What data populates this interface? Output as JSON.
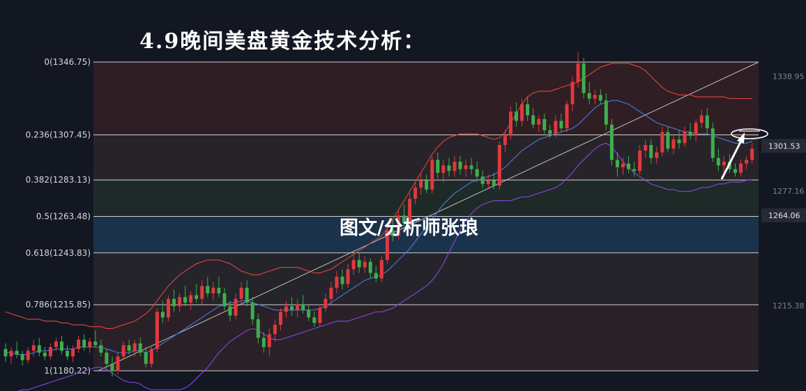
{
  "title": "4.9晚间美盘黄金技术分析：",
  "watermark": "图文/分析师张琅",
  "colors": {
    "background": "#131722",
    "up": "#e0393e",
    "down": "#3fae4d",
    "ma": "#4d7bdc",
    "upper_band": "#e2453c",
    "lower_band": "#8a45e0",
    "fib_line": "#d0d0d0",
    "trend_line": "#bfbfbf"
  },
  "chart_data": {
    "type": "candlestick",
    "price_range": [
      1172.3,
      1352.0
    ],
    "fib_levels": [
      {
        "label": "0(1346.75)",
        "price": 1346.75
      },
      {
        "label": "0.236(1307.45)",
        "price": 1307.45
      },
      {
        "label": "0.382(1283.13)",
        "price": 1283.13
      },
      {
        "label": "0.5(1263.48)",
        "price": 1263.48
      },
      {
        "label": "0.618(1243.83)",
        "price": 1243.83
      },
      {
        "label": "0.786(1215.85)",
        "price": 1215.85
      },
      {
        "label": "1(1180.22)",
        "price": 1180.22
      }
    ],
    "price_axis": [
      {
        "label": "1338.95",
        "price": 1338.95,
        "highlight": false
      },
      {
        "label": "1301.53",
        "price": 1301.53,
        "highlight": true
      },
      {
        "label": "1277.16",
        "price": 1277.16,
        "highlight": false
      },
      {
        "label": "1264.06",
        "price": 1264.06,
        "highlight": true
      },
      {
        "label": "1215.38",
        "price": 1215.38,
        "highlight": false
      }
    ],
    "zones": [
      {
        "from": 1346.75,
        "to": 1307.45,
        "color": "#3a2226",
        "opacity": 0.75
      },
      {
        "from": 1307.45,
        "to": 1283.13,
        "color": "#2f2a2c",
        "opacity": 0.75
      },
      {
        "from": 1283.13,
        "to": 1263.48,
        "color": "#22302a",
        "opacity": 0.8
      },
      {
        "from": 1263.48,
        "to": 1243.83,
        "color": "#1d3550",
        "opacity": 0.9
      },
      {
        "from": 1243.83,
        "to": 1215.85,
        "color": "#2b2a2e",
        "opacity": 0.75
      },
      {
        "from": 1215.85,
        "to": 1180.22,
        "color": "#32252a",
        "opacity": 0.75
      }
    ],
    "candles": [
      [
        1192,
        1195,
        1185,
        1188
      ],
      [
        1188,
        1193,
        1184,
        1191
      ],
      [
        1191,
        1196,
        1187,
        1189
      ],
      [
        1189,
        1191,
        1183,
        1186
      ],
      [
        1186,
        1193,
        1184,
        1191
      ],
      [
        1191,
        1197,
        1188,
        1194
      ],
      [
        1194,
        1198,
        1188,
        1190
      ],
      [
        1190,
        1193,
        1186,
        1188
      ],
      [
        1188,
        1195,
        1186,
        1193
      ],
      [
        1193,
        1198,
        1191,
        1196
      ],
      [
        1196,
        1199,
        1189,
        1191
      ],
      [
        1191,
        1194,
        1186,
        1188
      ],
      [
        1188,
        1194,
        1185,
        1192
      ],
      [
        1192,
        1199,
        1190,
        1197
      ],
      [
        1197,
        1200,
        1191,
        1193
      ],
      [
        1193,
        1198,
        1190,
        1196
      ],
      [
        1196,
        1202,
        1193,
        1194
      ],
      [
        1194,
        1197,
        1188,
        1190
      ],
      [
        1190,
        1192,
        1182,
        1184
      ],
      [
        1184,
        1188,
        1177,
        1180
      ],
      [
        1180,
        1190,
        1178,
        1188
      ],
      [
        1188,
        1196,
        1186,
        1194
      ],
      [
        1194,
        1197,
        1189,
        1191
      ],
      [
        1191,
        1197,
        1188,
        1195
      ],
      [
        1195,
        1198,
        1188,
        1190
      ],
      [
        1190,
        1193,
        1182,
        1184
      ],
      [
        1184,
        1194,
        1182,
        1192
      ],
      [
        1192,
        1214,
        1190,
        1212
      ],
      [
        1212,
        1218,
        1206,
        1209
      ],
      [
        1209,
        1221,
        1207,
        1219
      ],
      [
        1219,
        1224,
        1212,
        1215
      ],
      [
        1215,
        1222,
        1212,
        1220
      ],
      [
        1220,
        1226,
        1215,
        1217
      ],
      [
        1217,
        1223,
        1213,
        1221
      ],
      [
        1221,
        1227,
        1217,
        1219
      ],
      [
        1219,
        1229,
        1216,
        1226
      ],
      [
        1226,
        1231,
        1220,
        1222
      ],
      [
        1222,
        1228,
        1218,
        1225
      ],
      [
        1225,
        1231,
        1220,
        1222
      ],
      [
        1222,
        1225,
        1213,
        1215
      ],
      [
        1215,
        1218,
        1207,
        1210
      ],
      [
        1210,
        1222,
        1208,
        1219
      ],
      [
        1219,
        1228,
        1216,
        1225
      ],
      [
        1225,
        1229,
        1215,
        1217
      ],
      [
        1217,
        1220,
        1205,
        1208
      ],
      [
        1208,
        1211,
        1195,
        1198
      ],
      [
        1198,
        1201,
        1190,
        1193
      ],
      [
        1193,
        1203,
        1188,
        1200
      ],
      [
        1200,
        1208,
        1196,
        1205
      ],
      [
        1205,
        1214,
        1202,
        1212
      ],
      [
        1212,
        1218,
        1209,
        1215
      ],
      [
        1215,
        1220,
        1210,
        1213
      ],
      [
        1213,
        1219,
        1209,
        1216
      ],
      [
        1216,
        1221,
        1211,
        1213
      ],
      [
        1213,
        1216,
        1207,
        1209
      ],
      [
        1209,
        1212,
        1204,
        1206
      ],
      [
        1206,
        1216,
        1204,
        1214
      ],
      [
        1214,
        1222,
        1212,
        1219
      ],
      [
        1219,
        1228,
        1215,
        1225
      ],
      [
        1225,
        1234,
        1222,
        1231
      ],
      [
        1231,
        1235,
        1224,
        1227
      ],
      [
        1227,
        1238,
        1225,
        1235
      ],
      [
        1235,
        1243,
        1232,
        1240
      ],
      [
        1240,
        1244,
        1233,
        1236
      ],
      [
        1236,
        1242,
        1233,
        1239
      ],
      [
        1239,
        1241,
        1230,
        1233
      ],
      [
        1233,
        1237,
        1228,
        1230
      ],
      [
        1230,
        1242,
        1228,
        1240
      ],
      [
        1240,
        1258,
        1238,
        1256
      ],
      [
        1256,
        1262,
        1250,
        1253
      ],
      [
        1253,
        1267,
        1251,
        1264
      ],
      [
        1264,
        1270,
        1258,
        1260
      ],
      [
        1260,
        1276,
        1258,
        1273
      ],
      [
        1273,
        1282,
        1270,
        1279
      ],
      [
        1279,
        1287,
        1275,
        1283
      ],
      [
        1283,
        1286,
        1276,
        1278
      ],
      [
        1278,
        1296,
        1276,
        1294
      ],
      [
        1294,
        1298,
        1284,
        1287
      ],
      [
        1287,
        1294,
        1282,
        1291
      ],
      [
        1291,
        1295,
        1285,
        1288
      ],
      [
        1288,
        1296,
        1285,
        1293
      ],
      [
        1293,
        1296,
        1286,
        1289
      ],
      [
        1289,
        1294,
        1285,
        1291
      ],
      [
        1291,
        1295,
        1286,
        1289
      ],
      [
        1289,
        1293,
        1282,
        1285
      ],
      [
        1285,
        1288,
        1279,
        1281
      ],
      [
        1281,
        1286,
        1278,
        1283
      ],
      [
        1283,
        1287,
        1278,
        1280
      ],
      [
        1280,
        1304,
        1278,
        1302
      ],
      [
        1302,
        1310,
        1298,
        1307
      ],
      [
        1307,
        1323,
        1305,
        1320
      ],
      [
        1320,
        1325,
        1312,
        1315
      ],
      [
        1315,
        1327,
        1312,
        1324
      ],
      [
        1324,
        1328,
        1315,
        1318
      ],
      [
        1318,
        1322,
        1311,
        1313
      ],
      [
        1313,
        1318,
        1309,
        1316
      ],
      [
        1316,
        1319,
        1308,
        1310
      ],
      [
        1310,
        1313,
        1306,
        1308
      ],
      [
        1308,
        1318,
        1306,
        1315
      ],
      [
        1315,
        1319,
        1309,
        1311
      ],
      [
        1311,
        1326,
        1309,
        1324
      ],
      [
        1324,
        1339,
        1320,
        1336
      ],
      [
        1336,
        1352,
        1333,
        1346
      ],
      [
        1346,
        1349,
        1327,
        1330
      ],
      [
        1330,
        1336,
        1324,
        1327
      ],
      [
        1327,
        1332,
        1324,
        1329
      ],
      [
        1329,
        1332,
        1324,
        1326
      ],
      [
        1326,
        1330,
        1310,
        1313
      ],
      [
        1313,
        1316,
        1291,
        1294
      ],
      [
        1294,
        1298,
        1285,
        1290
      ],
      [
        1290,
        1295,
        1286,
        1292
      ],
      [
        1292,
        1296,
        1287,
        1289
      ],
      [
        1289,
        1293,
        1285,
        1288
      ],
      [
        1288,
        1302,
        1286,
        1299
      ],
      [
        1299,
        1305,
        1295,
        1302
      ],
      [
        1302,
        1305,
        1292,
        1295
      ],
      [
        1295,
        1301,
        1292,
        1298
      ],
      [
        1298,
        1312,
        1296,
        1309
      ],
      [
        1309,
        1312,
        1298,
        1300
      ],
      [
        1300,
        1308,
        1297,
        1305
      ],
      [
        1305,
        1310,
        1300,
        1303
      ],
      [
        1303,
        1312,
        1301,
        1309
      ],
      [
        1309,
        1314,
        1305,
        1307
      ],
      [
        1307,
        1316,
        1304,
        1314
      ],
      [
        1314,
        1321,
        1311,
        1318
      ],
      [
        1318,
        1322,
        1308,
        1311
      ],
      [
        1311,
        1314,
        1293,
        1295
      ],
      [
        1295,
        1300,
        1288,
        1291
      ],
      [
        1291,
        1296,
        1287,
        1293
      ],
      [
        1293,
        1297,
        1287,
        1289
      ],
      [
        1289,
        1292,
        1285,
        1287
      ],
      [
        1287,
        1294,
        1285,
        1292
      ],
      [
        1292,
        1296,
        1289,
        1294
      ],
      [
        1294,
        1303,
        1292,
        1300
      ]
    ],
    "moving_average": [
      1190,
      1190,
      1189,
      1189,
      1189,
      1190,
      1191,
      1191,
      1191,
      1192,
      1192,
      1192,
      1192,
      1193,
      1193,
      1193,
      1193,
      1193,
      1192,
      1191,
      1190,
      1190,
      1190,
      1191,
      1191,
      1190,
      1191,
      1193,
      1195,
      1197,
      1199,
      1201,
      1203,
      1205,
      1207,
      1209,
      1211,
      1213,
      1215,
      1216,
      1217,
      1217,
      1218,
      1218,
      1217,
      1216,
      1215,
      1214,
      1213,
      1213,
      1213,
      1213,
      1213,
      1213,
      1213,
      1213,
      1214,
      1215,
      1217,
      1219,
      1221,
      1223,
      1225,
      1227,
      1229,
      1230,
      1231,
      1232,
      1234,
      1237,
      1240,
      1243,
      1246,
      1250,
      1254,
      1258,
      1262,
      1266,
      1270,
      1273,
      1276,
      1278,
      1280,
      1282,
      1283,
      1284,
      1285,
      1286,
      1288,
      1290,
      1293,
      1296,
      1299,
      1301,
      1303,
      1305,
      1306,
      1307,
      1308,
      1309,
      1310,
      1311,
      1313,
      1316,
      1319,
      1322,
      1324,
      1325,
      1326,
      1326,
      1325,
      1324,
      1322,
      1320,
      1318,
      1316,
      1314,
      1313,
      1312,
      1311,
      1310,
      1309,
      1309,
      1308,
      1308,
      1308,
      1307,
      1306,
      1305,
      1304,
      1303,
      1303,
      1303,
      1304
    ],
    "upper_band": [
      1212,
      1211,
      1210,
      1209,
      1208,
      1208,
      1208,
      1207,
      1207,
      1207,
      1206,
      1206,
      1205,
      1205,
      1205,
      1204,
      1204,
      1204,
      1203,
      1203,
      1204,
      1205,
      1206,
      1207,
      1209,
      1211,
      1214,
      1218,
      1222,
      1226,
      1229,
      1232,
      1234,
      1236,
      1238,
      1239,
      1240,
      1240,
      1240,
      1239,
      1238,
      1236,
      1234,
      1233,
      1232,
      1232,
      1233,
      1234,
      1235,
      1236,
      1236,
      1236,
      1236,
      1235,
      1234,
      1233,
      1233,
      1234,
      1235,
      1237,
      1239,
      1241,
      1243,
      1245,
      1247,
      1249,
      1251,
      1253,
      1257,
      1262,
      1267,
      1272,
      1277,
      1282,
      1287,
      1292,
      1297,
      1301,
      1304,
      1306,
      1307,
      1308,
      1308,
      1308,
      1308,
      1307,
      1306,
      1305,
      1306,
      1309,
      1314,
      1319,
      1324,
      1328,
      1330,
      1331,
      1331,
      1331,
      1332,
      1333,
      1334,
      1335,
      1336,
      1338,
      1340,
      1342,
      1344,
      1345,
      1346,
      1346,
      1346,
      1346,
      1345,
      1344,
      1342,
      1339,
      1336,
      1333,
      1331,
      1330,
      1329,
      1329,
      1329,
      1328,
      1328,
      1328,
      1328,
      1328,
      1328,
      1327,
      1327,
      1327,
      1327,
      1327
    ],
    "lower_band": [
      1168,
      1169,
      1169,
      1170,
      1170,
      1171,
      1172,
      1173,
      1174,
      1175,
      1176,
      1177,
      1178,
      1179,
      1180,
      1181,
      1182,
      1182,
      1181,
      1179,
      1177,
      1175,
      1174,
      1174,
      1173,
      1171,
      1170,
      1170,
      1170,
      1170,
      1170,
      1170,
      1171,
      1173,
      1176,
      1179,
      1182,
      1186,
      1190,
      1193,
      1196,
      1198,
      1200,
      1202,
      1203,
      1202,
      1200,
      1198,
      1197,
      1197,
      1198,
      1199,
      1200,
      1201,
      1202,
      1203,
      1204,
      1205,
      1206,
      1207,
      1207,
      1207,
      1208,
      1209,
      1210,
      1211,
      1212,
      1212,
      1213,
      1214,
      1216,
      1218,
      1220,
      1222,
      1224,
      1226,
      1229,
      1233,
      1238,
      1244,
      1250,
      1256,
      1261,
      1265,
      1268,
      1270,
      1271,
      1272,
      1272,
      1272,
      1272,
      1273,
      1274,
      1274,
      1275,
      1276,
      1277,
      1278,
      1279,
      1281,
      1284,
      1287,
      1291,
      1294,
      1297,
      1300,
      1302,
      1303,
      1301,
      1297,
      1293,
      1290,
      1287,
      1285,
      1283,
      1281,
      1280,
      1279,
      1278,
      1278,
      1277,
      1277,
      1277,
      1278,
      1279,
      1279,
      1280,
      1281,
      1281,
      1282,
      1282,
      1282,
      1283,
      1283
    ],
    "trend_line": {
      "from_index": 18,
      "from_price": 1180.22,
      "to_index": 135,
      "to_price": 1346.75
    }
  }
}
